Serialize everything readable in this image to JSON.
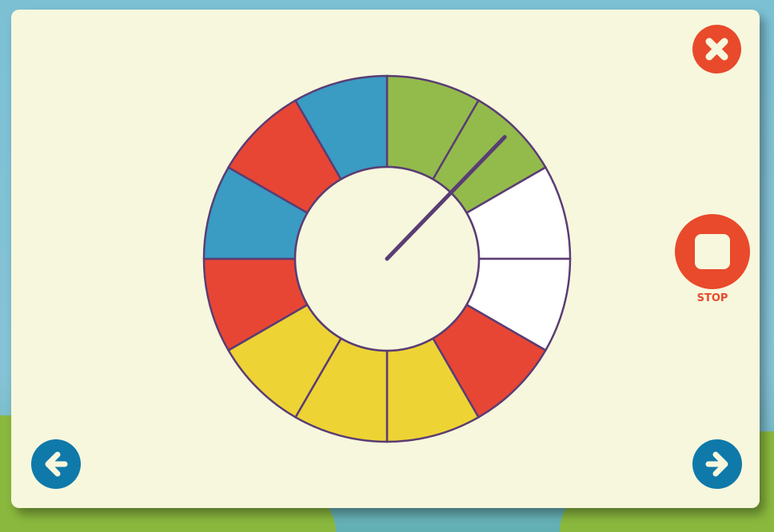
{
  "colors": {
    "green": "#93bb4b",
    "white": "#ffffff",
    "red": "#e84634",
    "yellow": "#eed335",
    "blue": "#3a9bc3",
    "outline": "#5a3d74",
    "button": "#e84a2b",
    "nav": "#0f79aa"
  },
  "spinner": {
    "segments": [
      "green",
      "green",
      "white",
      "white",
      "red",
      "yellow",
      "yellow",
      "yellow",
      "red",
      "blue",
      "red",
      "blue"
    ],
    "needle_angle_deg": 44
  },
  "controls": {
    "stop_label": "STOP",
    "close_icon": "close-icon",
    "stop_icon": "stop-square-icon",
    "prev_icon": "arrow-left-icon",
    "next_icon": "arrow-right-icon"
  }
}
